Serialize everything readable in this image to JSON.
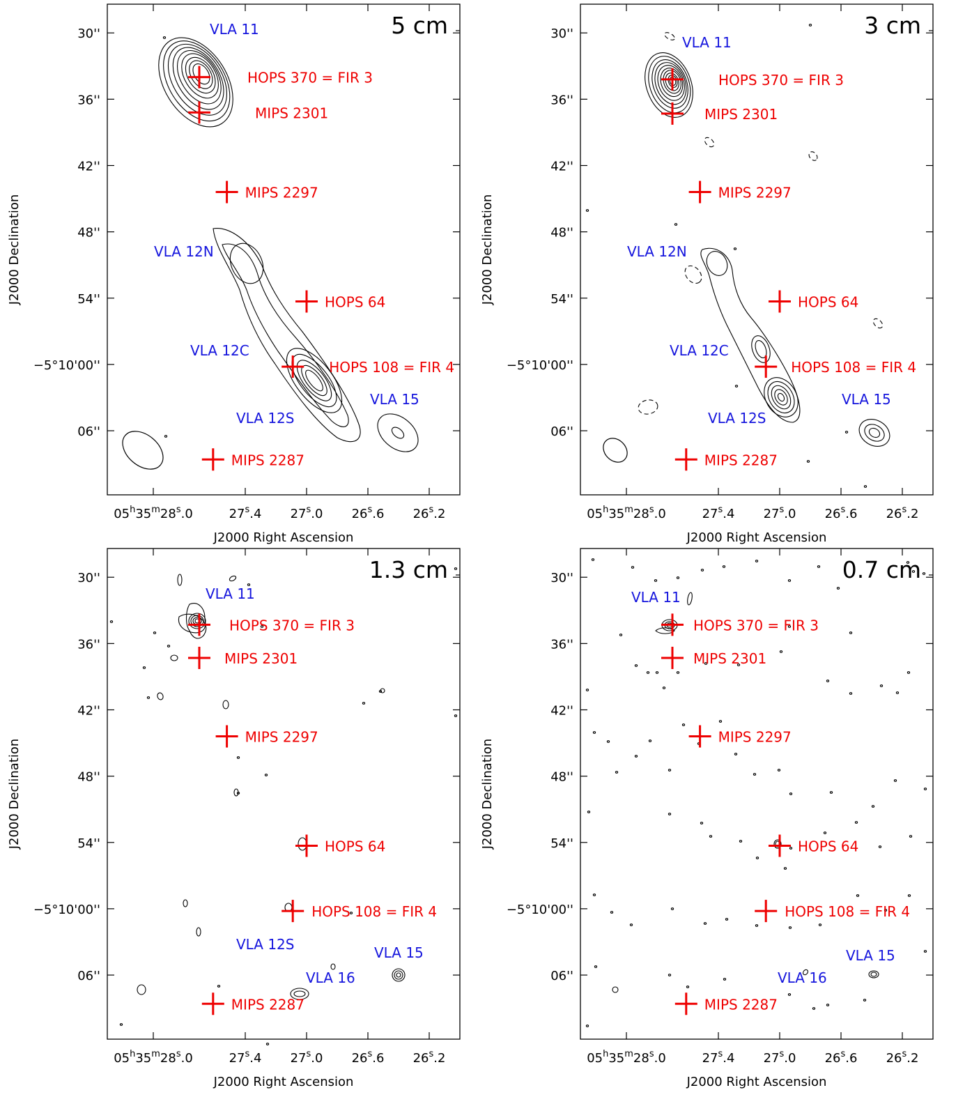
{
  "figure": {
    "x_axis_label": "J2000 Right Ascension",
    "y_axis_label": "J2000 Declination",
    "ra_ticks": [
      {
        "value_s": 28.0,
        "label": "05h35m28.0s"
      },
      {
        "value_s": 27.4,
        "label": "27s.4"
      },
      {
        "value_s": 27.0,
        "label": "27s.0"
      },
      {
        "value_s": 26.6,
        "label": "26s.6"
      },
      {
        "value_s": 26.2,
        "label": "26s.2"
      }
    ],
    "dec_ticks": [
      {
        "value_arcsec": 30,
        "label": "30''"
      },
      {
        "value_arcsec": 36,
        "label": "36''"
      },
      {
        "value_arcsec": 42,
        "label": "42''"
      },
      {
        "value_arcsec": 48,
        "label": "48''"
      },
      {
        "value_arcsec": 54,
        "label": "54''"
      },
      {
        "value_arcsec": 60,
        "label": "−5°10'00''"
      },
      {
        "value_arcsec": 66,
        "label": "06''"
      }
    ]
  },
  "chart_data": [
    {
      "type": "scatter",
      "title": "5 cm",
      "xlabel": "J2000 Right Ascension",
      "ylabel": "J2000 Declination",
      "xlim_ra_seconds": [
        28.3,
        26.0
      ],
      "ylim_dec_arcsec_offset": [
        27.4,
        71.8
      ],
      "sources": [
        {
          "name": "HOPS 370 = FIR 3",
          "ra_s": 27.7,
          "dec_as": 34.0,
          "color": "#ee0000",
          "marker": "cross"
        },
        {
          "name": "MIPS 2301",
          "ra_s": 27.7,
          "dec_as": 37.2,
          "color": "#ee0000",
          "marker": "cross"
        },
        {
          "name": "MIPS 2297",
          "ra_s": 27.52,
          "dec_as": 44.4,
          "color": "#ee0000",
          "marker": "cross"
        },
        {
          "name": "HOPS 64",
          "ra_s": 27.0,
          "dec_as": 54.3,
          "color": "#ee0000",
          "marker": "cross"
        },
        {
          "name": "HOPS 108 = FIR 4",
          "ra_s": 27.09,
          "dec_as": 60.2,
          "color": "#ee0000",
          "marker": "cross"
        },
        {
          "name": "MIPS 2287",
          "ra_s": 27.61,
          "dec_as": 68.6,
          "color": "#ee0000",
          "marker": "cross"
        },
        {
          "name": "VLA 11",
          "color": "#1515dd",
          "marker": "label"
        },
        {
          "name": "VLA 12N",
          "color": "#1515dd",
          "marker": "label"
        },
        {
          "name": "VLA 12C",
          "color": "#1515dd",
          "marker": "label"
        },
        {
          "name": "VLA 12S",
          "color": "#1515dd",
          "marker": "label"
        },
        {
          "name": "VLA 15",
          "color": "#1515dd",
          "marker": "label"
        }
      ]
    },
    {
      "type": "scatter",
      "title": "3 cm",
      "xlabel": "J2000 Right Ascension",
      "ylabel": "J2000 Declination",
      "xlim_ra_seconds": [
        28.3,
        26.0
      ],
      "ylim_dec_arcsec_offset": [
        27.4,
        71.8
      ],
      "sources": [
        {
          "name": "HOPS 370 = FIR 3",
          "ra_s": 27.7,
          "dec_as": 34.2,
          "color": "#ee0000",
          "marker": "cross"
        },
        {
          "name": "MIPS 2301",
          "ra_s": 27.7,
          "dec_as": 37.3,
          "color": "#ee0000",
          "marker": "cross"
        },
        {
          "name": "MIPS 2297",
          "ra_s": 27.52,
          "dec_as": 44.4,
          "color": "#ee0000",
          "marker": "cross"
        },
        {
          "name": "HOPS 64",
          "ra_s": 27.0,
          "dec_as": 54.3,
          "color": "#ee0000",
          "marker": "cross"
        },
        {
          "name": "HOPS 108 = FIR 4",
          "ra_s": 27.09,
          "dec_as": 60.2,
          "color": "#ee0000",
          "marker": "cross"
        },
        {
          "name": "MIPS 2287",
          "ra_s": 27.61,
          "dec_as": 68.6,
          "color": "#ee0000",
          "marker": "cross"
        },
        {
          "name": "VLA 11",
          "color": "#1515dd",
          "marker": "label"
        },
        {
          "name": "VLA 12N",
          "color": "#1515dd",
          "marker": "label"
        },
        {
          "name": "VLA 12C",
          "color": "#1515dd",
          "marker": "label"
        },
        {
          "name": "VLA 12S",
          "color": "#1515dd",
          "marker": "label"
        },
        {
          "name": "VLA 15",
          "color": "#1515dd",
          "marker": "label"
        }
      ]
    },
    {
      "type": "scatter",
      "title": "1.3 cm",
      "xlabel": "J2000 Right Ascension",
      "ylabel": "J2000 Declination",
      "xlim_ra_seconds": [
        28.3,
        26.0
      ],
      "ylim_dec_arcsec_offset": [
        27.4,
        71.8
      ],
      "sources": [
        {
          "name": "HOPS 370 = FIR 3",
          "ra_s": 27.7,
          "dec_as": 34.3,
          "color": "#ee0000",
          "marker": "cross"
        },
        {
          "name": "MIPS 2301",
          "ra_s": 27.7,
          "dec_as": 37.3,
          "color": "#ee0000",
          "marker": "cross"
        },
        {
          "name": "MIPS 2297",
          "ra_s": 27.52,
          "dec_as": 44.4,
          "color": "#ee0000",
          "marker": "cross"
        },
        {
          "name": "HOPS 64",
          "ra_s": 27.0,
          "dec_as": 54.3,
          "color": "#ee0000",
          "marker": "cross"
        },
        {
          "name": "HOPS 108 = FIR 4",
          "ra_s": 27.09,
          "dec_as": 60.2,
          "color": "#ee0000",
          "marker": "cross"
        },
        {
          "name": "MIPS 2287",
          "ra_s": 27.61,
          "dec_as": 68.6,
          "color": "#ee0000",
          "marker": "cross"
        },
        {
          "name": "VLA 11",
          "color": "#1515dd",
          "marker": "label"
        },
        {
          "name": "VLA 12S",
          "color": "#1515dd",
          "marker": "label"
        },
        {
          "name": "VLA 15",
          "color": "#1515dd",
          "marker": "label"
        },
        {
          "name": "VLA 16",
          "color": "#1515dd",
          "marker": "label"
        }
      ]
    },
    {
      "type": "scatter",
      "title": "0.7 cm",
      "xlabel": "J2000 Right Ascension",
      "ylabel": "J2000 Declination",
      "xlim_ra_seconds": [
        28.3,
        26.0
      ],
      "ylim_dec_arcsec_offset": [
        27.4,
        71.8
      ],
      "sources": [
        {
          "name": "HOPS 370 = FIR 3",
          "ra_s": 27.7,
          "dec_as": 34.3,
          "color": "#ee0000",
          "marker": "cross"
        },
        {
          "name": "MIPS 2301",
          "ra_s": 27.7,
          "dec_as": 37.3,
          "color": "#ee0000",
          "marker": "cross"
        },
        {
          "name": "MIPS 2297",
          "ra_s": 27.52,
          "dec_as": 44.4,
          "color": "#ee0000",
          "marker": "cross"
        },
        {
          "name": "HOPS 64",
          "ra_s": 27.0,
          "dec_as": 54.3,
          "color": "#ee0000",
          "marker": "cross"
        },
        {
          "name": "HOPS 108 = FIR 4",
          "ra_s": 27.09,
          "dec_as": 60.2,
          "color": "#ee0000",
          "marker": "cross"
        },
        {
          "name": "MIPS 2287",
          "ra_s": 27.61,
          "dec_as": 68.6,
          "color": "#ee0000",
          "marker": "cross"
        },
        {
          "name": "VLA 11",
          "color": "#1515dd",
          "marker": "label"
        },
        {
          "name": "VLA 15",
          "color": "#1515dd",
          "marker": "label"
        },
        {
          "name": "VLA 16",
          "color": "#1515dd",
          "marker": "label"
        }
      ]
    }
  ]
}
